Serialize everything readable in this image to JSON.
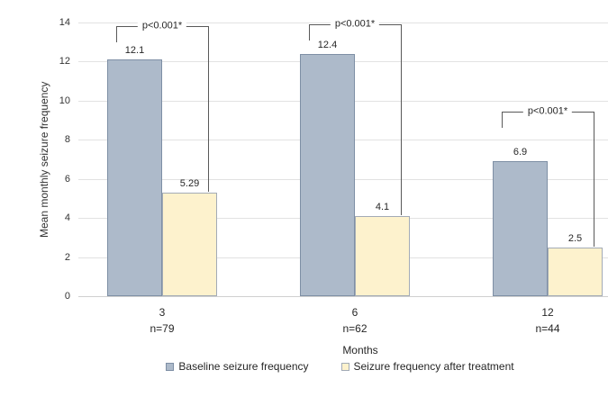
{
  "chart_data": {
    "type": "bar",
    "title": "",
    "xlabel": "Months",
    "ylabel": "Mean monthly seizure frequency",
    "ylim": [
      0,
      14
    ],
    "yticks": [
      0,
      2,
      4,
      6,
      8,
      10,
      12,
      14
    ],
    "grid": true,
    "legend_position": "bottom",
    "categories": [
      "3",
      "6",
      "12"
    ],
    "category_sublabels": [
      "n=79",
      "n=62",
      "n=44"
    ],
    "series": [
      {
        "name": "Baseline seizure frequency",
        "values": [
          12.1,
          12.4,
          6.9
        ],
        "value_labels": [
          "12.1",
          "12.4",
          "6.9"
        ],
        "fill": "#adbaca",
        "border": "#7e8fa5"
      },
      {
        "name": "Seizure frequency after treatment",
        "values": [
          5.29,
          4.1,
          2.5
        ],
        "value_labels": [
          "5.29",
          "4.1",
          "2.5"
        ],
        "fill": "#fdf2cd",
        "border": "#a3abb6"
      }
    ],
    "significance_brackets": [
      {
        "group": 0,
        "label": "p<0.001*",
        "top_value": 13.8
      },
      {
        "group": 1,
        "label": "p<0.001*",
        "top_value": 13.9
      },
      {
        "group": 2,
        "label": "p<0.001*",
        "top_value": 9.45
      }
    ],
    "colors": {
      "gridline": "#e2e2e2",
      "axis_line": "#d0d0d0",
      "bracket": "#595959",
      "text": "#262626"
    }
  }
}
